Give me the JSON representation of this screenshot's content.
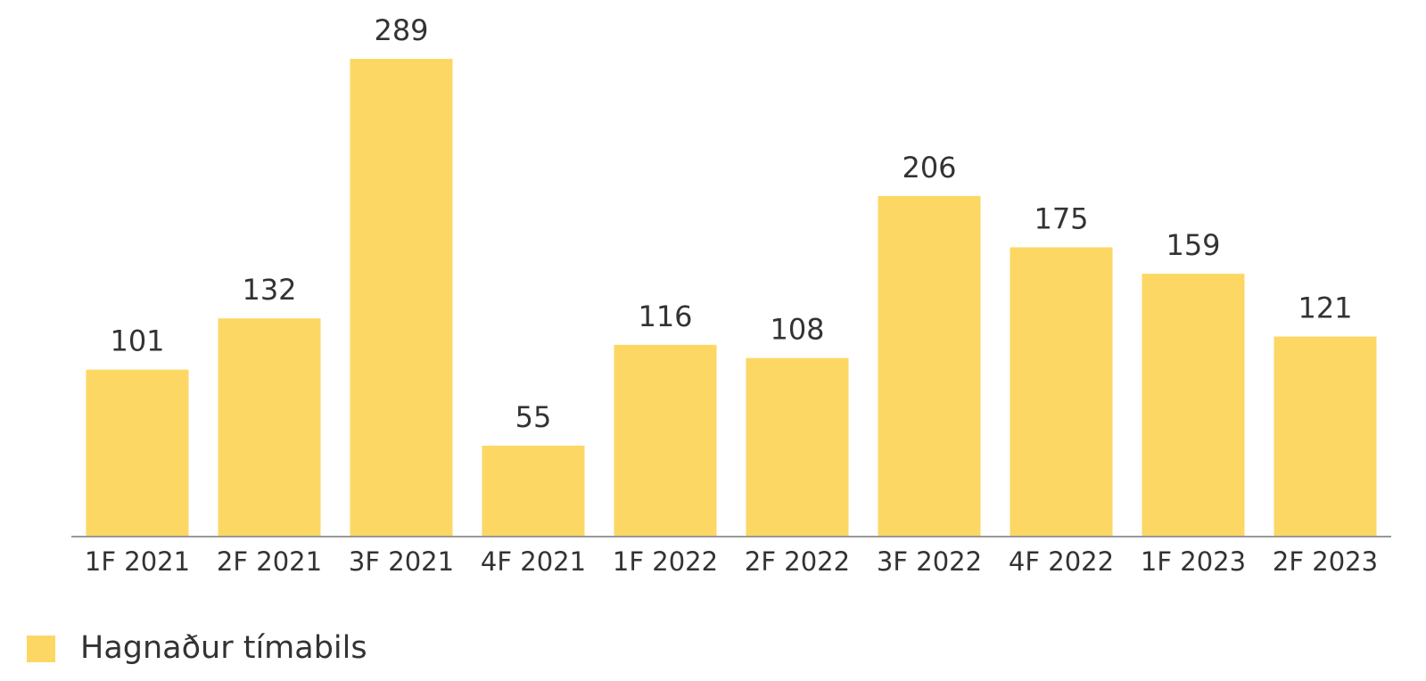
{
  "chart_data": {
    "type": "bar",
    "categories": [
      "1F 2021",
      "2F 2021",
      "3F 2021",
      "4F 2021",
      "1F 2022",
      "2F 2022",
      "3F 2022",
      "4F 2022",
      "1F 2023",
      "2F 2023"
    ],
    "series": [
      {
        "name": "Hagnaður tímabils",
        "color": "#fcd764",
        "values": [
          101,
          132,
          289,
          55,
          116,
          108,
          206,
          175,
          159,
          121
        ]
      }
    ],
    "legend": "bottom-left"
  }
}
